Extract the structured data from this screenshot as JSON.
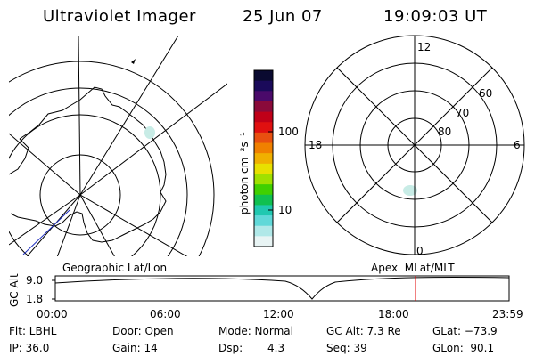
{
  "header": {
    "title": "Ultraviolet Imager",
    "date": "25 Jun 07",
    "time": "19:09:03 UT"
  },
  "colorbar": {
    "unit_label": "photon cm⁻²s⁻¹",
    "tick_100": "100",
    "tick_10": "10",
    "colors": [
      "#0a0a30",
      "#1a0a5a",
      "#4a0a6a",
      "#8a0a3a",
      "#c00018",
      "#e01010",
      "#e85010",
      "#f08000",
      "#f0b000",
      "#e8e000",
      "#a0e000",
      "#40d000",
      "#10c050",
      "#20c8b0",
      "#60d8d8",
      "#b0e8e8",
      "#e8f4f4"
    ]
  },
  "left_map": {
    "caption": "Geographic Lat/Lon"
  },
  "right_map": {
    "caption": "Apex  MLat/MLT",
    "mlt_labels": {
      "top": "12",
      "left": "18",
      "right": "6",
      "bottom": "0"
    },
    "lat_labels": [
      "60",
      "70",
      "80"
    ]
  },
  "altitude_plot": {
    "ylabel": "GC Alt",
    "y_ticks": [
      "9.0",
      "1.8"
    ],
    "x_ticks": [
      "00:00",
      "06:00",
      "12:00",
      "18:00",
      "23:59"
    ]
  },
  "status": {
    "flt": "Flt: LBHL",
    "door": "Door: Open",
    "mode": "Mode: Normal",
    "gc_alt": "GC Alt: 7.3 Re",
    "glat": "GLat: −73.9",
    "ip": "IP: 36.0",
    "gain": "Gain: 14",
    "dsp_label": "Dsp:",
    "dsp_value": "4.3",
    "seq": "Seq: 39",
    "glon": "GLon:  90.1"
  },
  "marker_color": "#e00000"
}
